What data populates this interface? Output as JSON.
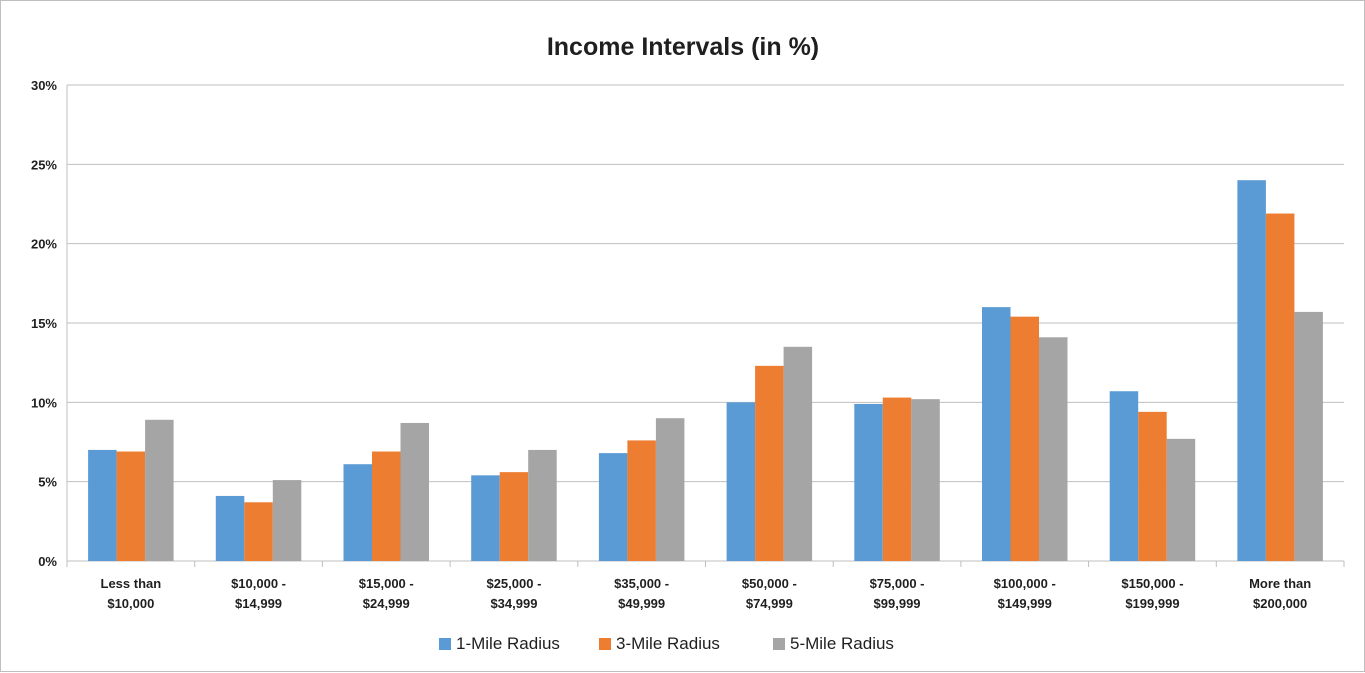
{
  "chart_data": {
    "type": "bar",
    "title": "Income Intervals (in %)",
    "xlabel": "",
    "ylabel": "",
    "ylim": [
      0,
      30
    ],
    "yticks": [
      "0%",
      "5%",
      "10%",
      "15%",
      "20%",
      "25%",
      "30%"
    ],
    "ytick_values": [
      0,
      5,
      10,
      15,
      20,
      25,
      30
    ],
    "grid": true,
    "legend_position": "bottom",
    "categories": [
      [
        "Less than",
        "$10,000"
      ],
      [
        "$10,000 -",
        "$14,999"
      ],
      [
        "$15,000 -",
        "$24,999"
      ],
      [
        "$25,000 -",
        "$34,999"
      ],
      [
        "$35,000 -",
        "$49,999"
      ],
      [
        "$50,000 -",
        "$74,999"
      ],
      [
        "$75,000 -",
        "$99,999"
      ],
      [
        "$100,000 -",
        "$149,999"
      ],
      [
        "$150,000 -",
        "$199,999"
      ],
      [
        "More than",
        "$200,000"
      ]
    ],
    "series": [
      {
        "name": "1-Mile Radius",
        "color": "#5b9bd5",
        "values": [
          7.0,
          4.1,
          6.1,
          5.4,
          6.8,
          10.0,
          9.9,
          16.0,
          10.7,
          24.0
        ]
      },
      {
        "name": "3-Mile Radius",
        "color": "#ed7d31",
        "values": [
          6.9,
          3.7,
          6.9,
          5.6,
          7.6,
          12.3,
          10.3,
          15.4,
          9.4,
          21.9
        ]
      },
      {
        "name": "5-Mile Radius",
        "color": "#a5a5a5",
        "values": [
          8.9,
          5.1,
          8.7,
          7.0,
          9.0,
          13.5,
          10.2,
          14.1,
          7.7,
          15.7
        ]
      }
    ]
  }
}
